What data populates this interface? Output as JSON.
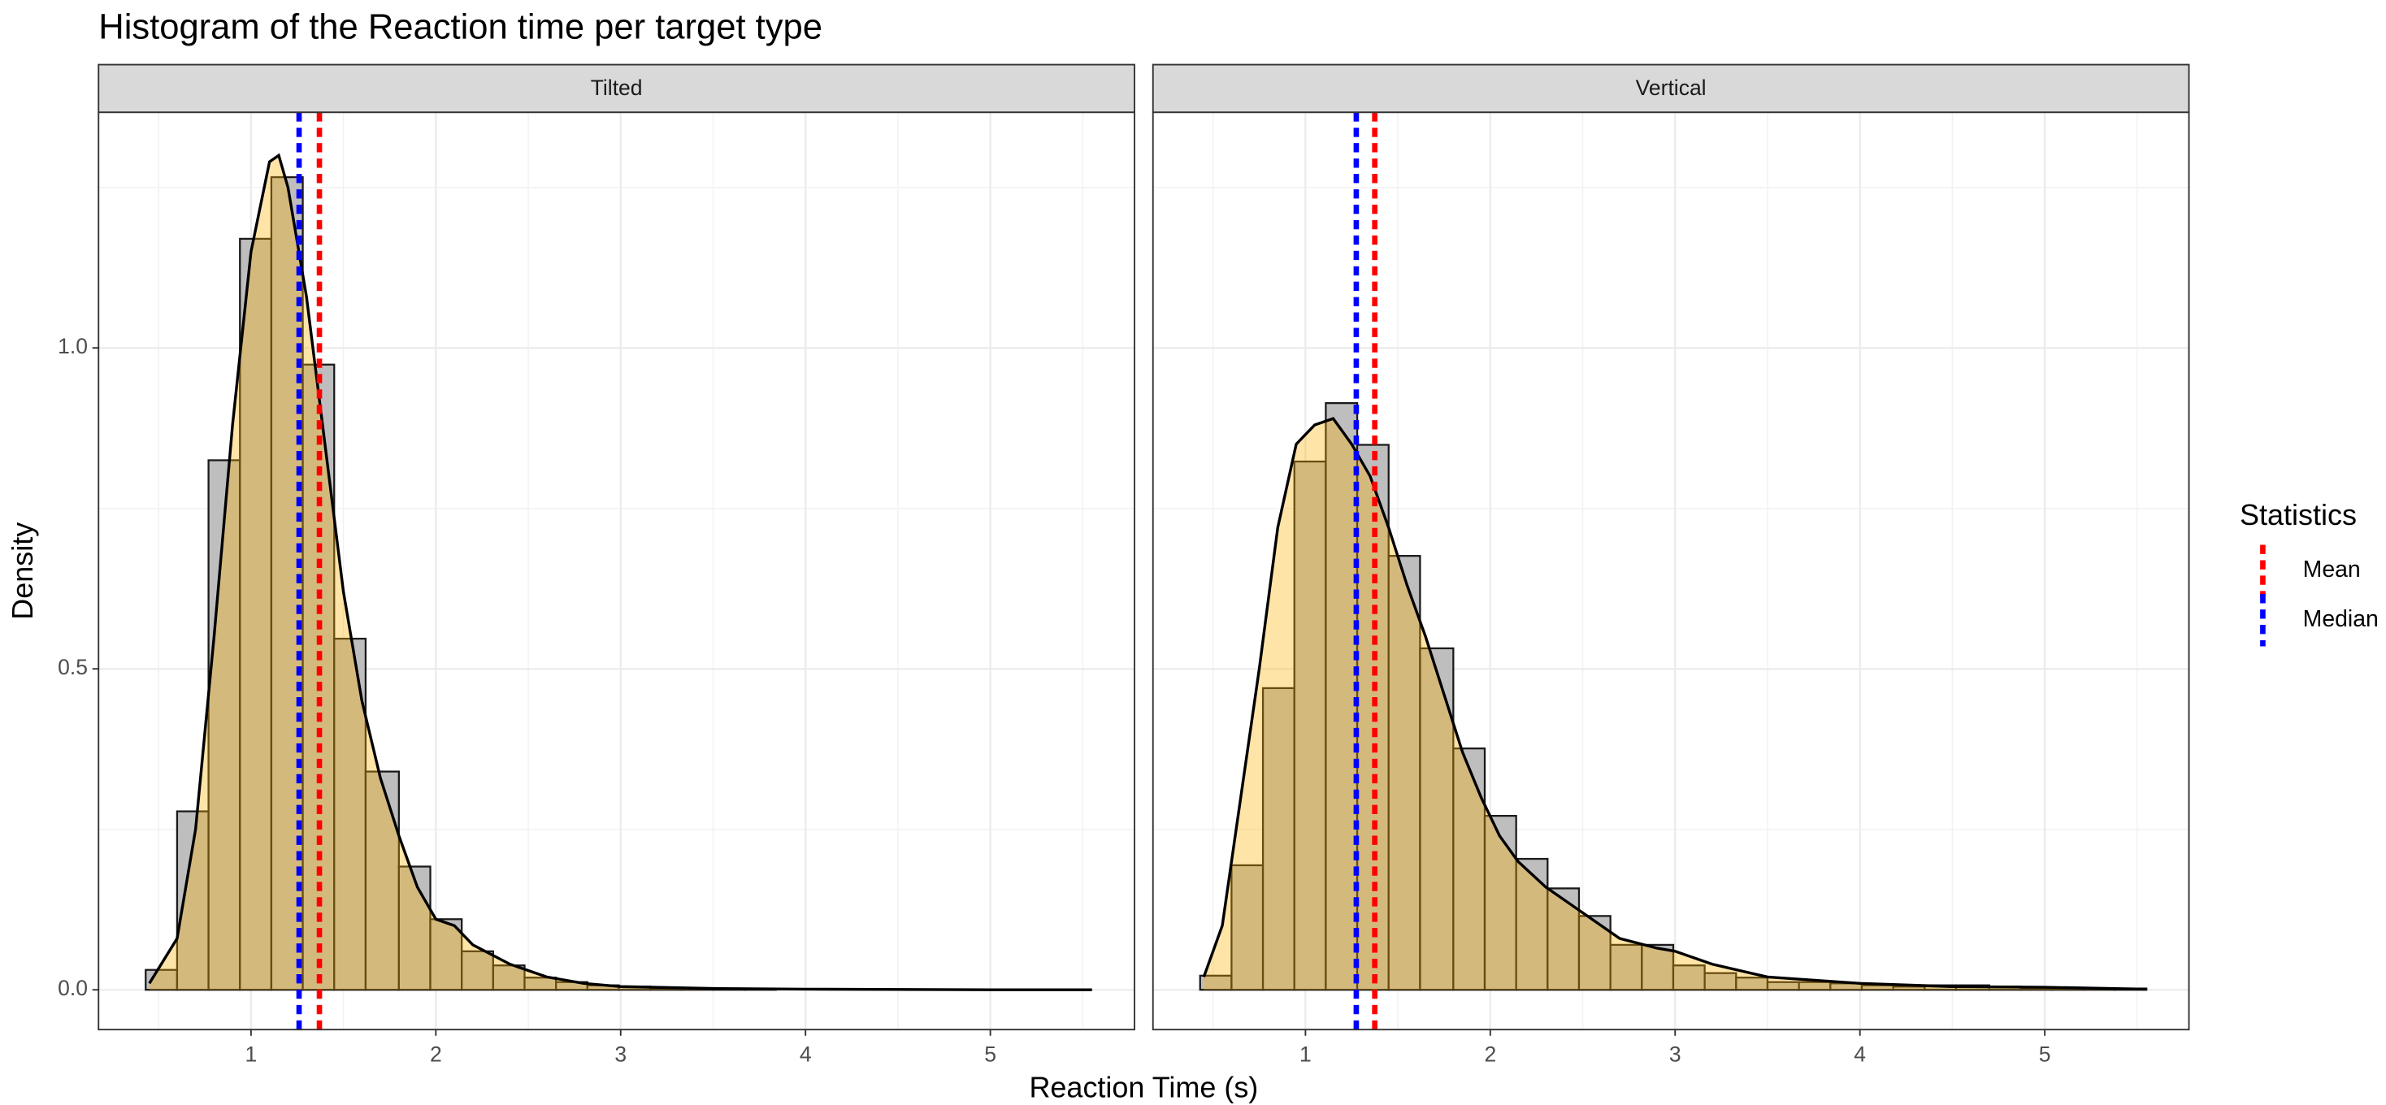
{
  "chart_data": {
    "type": "histogram",
    "title": "Histogram of the Reaction time per target type",
    "x_label": "Reaction Time (s)",
    "y_label": "Density",
    "xlim": [
      0.175,
      5.78
    ],
    "ylim": [
      -0.062,
      1.367
    ],
    "xticks": [
      1,
      2,
      3,
      4,
      5
    ],
    "yticks": [
      {
        "value": 0,
        "label": "0.0"
      },
      0.5,
      {
        "value": 1,
        "label": "1.0"
      }
    ],
    "grid": true,
    "bar_color": "#bebebe",
    "bar_edge_color": "#1a1a1a",
    "density_color": "#ffb000",
    "density_alpha": 0.34,
    "density_line_color": "#000000",
    "legend": {
      "title": "Statistics",
      "position": "right"
    },
    "stat_lines": [
      {
        "name": "Mean",
        "color": "#ff0000"
      },
      {
        "name": "Median",
        "color": "#0000ff"
      }
    ],
    "bins": [
      0.43,
      0.6,
      0.77,
      0.94,
      1.11,
      1.28,
      1.45,
      1.62,
      1.8,
      1.97,
      2.14,
      2.31,
      2.48,
      2.65,
      2.82,
      2.99,
      3.16,
      3.33,
      3.5,
      3.67,
      3.84,
      4.01,
      4.18,
      4.35,
      4.52,
      4.7,
      4.87,
      5.04,
      5.21,
      5.38,
      5.55
    ],
    "facets": [
      {
        "name": "Tilted",
        "values": [
          0.031,
          0.278,
          0.825,
          1.17,
          1.266,
          0.974,
          0.547,
          0.34,
          0.192,
          0.11,
          0.06,
          0.038,
          0.019,
          0.012,
          0.007,
          0.005,
          0.002,
          0.001,
          0.001,
          0.001,
          0,
          0,
          0,
          0,
          0,
          0,
          0,
          0,
          0,
          0
        ],
        "density": {
          "x": [
            0.45,
            0.6,
            0.7,
            0.8,
            0.9,
            1.0,
            1.1,
            1.15,
            1.2,
            1.3,
            1.4,
            1.5,
            1.6,
            1.7,
            1.8,
            1.9,
            2.0,
            2.1,
            2.2,
            2.4,
            2.6,
            2.8,
            3.0,
            3.5,
            4.0,
            5.0,
            5.55
          ],
          "values": [
            0.01,
            0.08,
            0.25,
            0.55,
            0.88,
            1.15,
            1.29,
            1.3,
            1.25,
            1.08,
            0.85,
            0.62,
            0.45,
            0.33,
            0.24,
            0.16,
            0.11,
            0.1,
            0.07,
            0.04,
            0.02,
            0.01,
            0.005,
            0.002,
            0.001,
            0,
            0
          ]
        },
        "stats": [
          1.37,
          1.26
        ]
      },
      {
        "name": "Vertical",
        "values": [
          0.022,
          0.194,
          0.47,
          0.823,
          0.914,
          0.849,
          0.676,
          0.532,
          0.376,
          0.271,
          0.204,
          0.158,
          0.115,
          0.07,
          0.07,
          0.038,
          0.026,
          0.019,
          0.012,
          0.012,
          0.01,
          0.007,
          0.005,
          0.007,
          0.007,
          0.005,
          0.002,
          0.002,
          0.002,
          0.002
        ],
        "density": {
          "x": [
            0.45,
            0.55,
            0.65,
            0.75,
            0.85,
            0.95,
            1.05,
            1.15,
            1.25,
            1.35,
            1.45,
            1.55,
            1.65,
            1.75,
            1.85,
            1.95,
            2.05,
            2.15,
            2.3,
            2.5,
            2.7,
            2.9,
            3.0,
            3.2,
            3.5,
            4.0,
            4.5,
            5.0,
            5.55
          ],
          "values": [
            0.02,
            0.1,
            0.3,
            0.5,
            0.72,
            0.85,
            0.88,
            0.89,
            0.85,
            0.8,
            0.72,
            0.63,
            0.55,
            0.46,
            0.37,
            0.3,
            0.24,
            0.2,
            0.16,
            0.12,
            0.08,
            0.065,
            0.06,
            0.04,
            0.02,
            0.01,
            0.005,
            0.004,
            0.001
          ]
        },
        "stats": [
          1.375,
          1.275
        ]
      }
    ]
  }
}
